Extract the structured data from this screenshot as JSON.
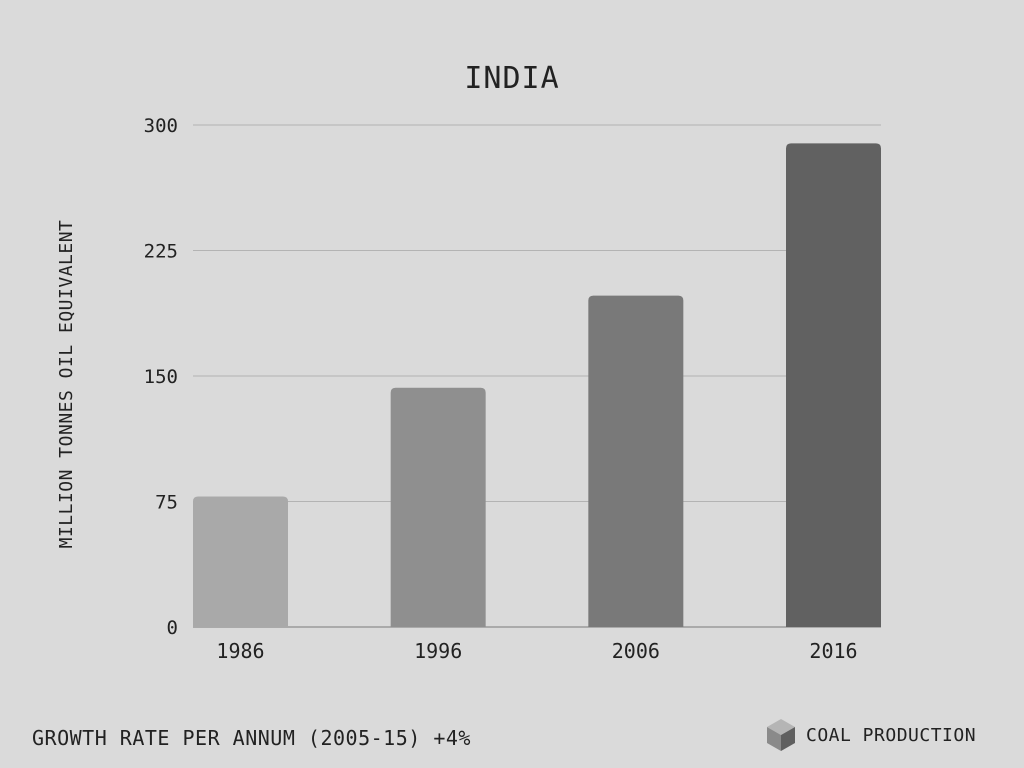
{
  "chart_data": {
    "type": "bar",
    "title": "INDIA",
    "ylabel": "MILLION TONNES OIL EQUIVALENT",
    "xlabel": "",
    "categories": [
      "1986",
      "1996",
      "2006",
      "2016"
    ],
    "values": [
      78,
      143,
      198,
      289
    ],
    "ylim": [
      0,
      300
    ],
    "yticks": [
      "0",
      "75",
      "150",
      "225",
      "300"
    ],
    "grid": true,
    "bar_colors": [
      "#a9a9a9",
      "#8f8f8f",
      "#797979",
      "#616161"
    ]
  },
  "footer": {
    "growth_note": "GROWTH RATE PER ANNUM (2005-15) +4%",
    "brand_label": "COAL PRODUCTION",
    "brand_icon": "cube-icon"
  }
}
